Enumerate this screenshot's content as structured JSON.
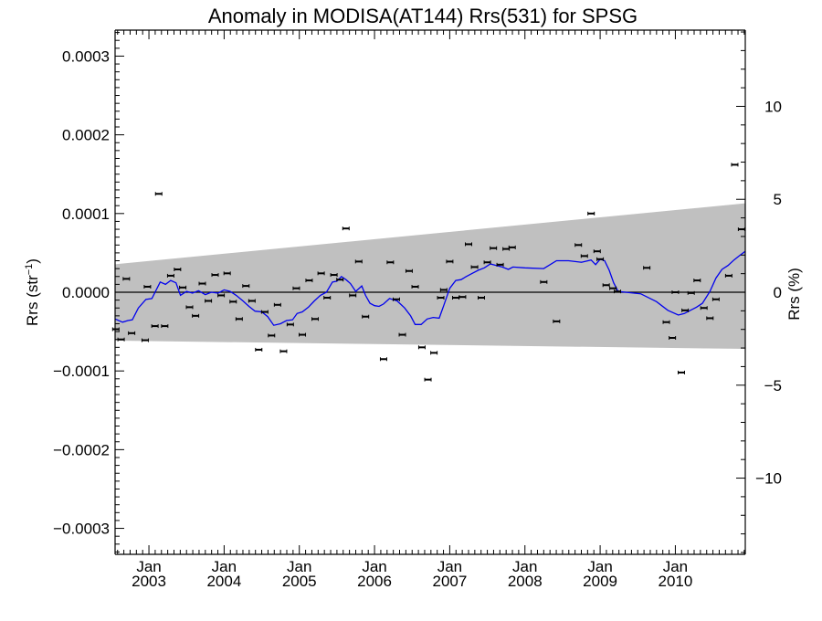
{
  "chart_data": {
    "type": "scatter",
    "title": "Anomaly in MODISA(AT144) Rrs(531) for SPSG",
    "ylabel": "Rrs (str",
    "ylabel_sup": "−1",
    "ylabel_close": ")",
    "y2label": "Rrs (%)",
    "xlim": [
      2002.55,
      2010.93
    ],
    "ylim": [
      -0.000333,
      0.000333
    ],
    "y2lim": [
      -14.1,
      14.1
    ],
    "grid": false,
    "x_ticks": [
      {
        "x": 2003.0,
        "month": "Jan",
        "year": "2003"
      },
      {
        "x": 2004.0,
        "month": "Jan",
        "year": "2004"
      },
      {
        "x": 2005.0,
        "month": "Jan",
        "year": "2005"
      },
      {
        "x": 2006.0,
        "month": "Jan",
        "year": "2006"
      },
      {
        "x": 2007.0,
        "month": "Jan",
        "year": "2007"
      },
      {
        "x": 2008.0,
        "month": "Jan",
        "year": "2008"
      },
      {
        "x": 2009.0,
        "month": "Jan",
        "year": "2009"
      },
      {
        "x": 2010.0,
        "month": "Jan",
        "year": "2010"
      }
    ],
    "y_ticks": [
      {
        "v": 0.0003,
        "label": "0.0003"
      },
      {
        "v": 0.0002,
        "label": "0.0002"
      },
      {
        "v": 0.0001,
        "label": "0.0001"
      },
      {
        "v": 0.0,
        "label": "0.0000"
      },
      {
        "v": -0.0001,
        "label": "−0.0001"
      },
      {
        "v": -0.0002,
        "label": "−0.0002"
      },
      {
        "v": -0.0003,
        "label": "−0.0003"
      }
    ],
    "y2_ticks": [
      {
        "v": 10,
        "label": "10"
      },
      {
        "v": 5,
        "label": "5"
      },
      {
        "v": 0,
        "label": "0"
      },
      {
        "v": -5,
        "label": "−5"
      },
      {
        "v": -10,
        "label": "−10"
      }
    ],
    "band": {
      "color": "#c0c0c0",
      "upper": [
        [
          2002.55,
          3.55e-05
        ],
        [
          2010.93,
          0.000113
        ]
      ],
      "lower": [
        [
          2002.55,
          -6.15e-05
        ],
        [
          2010.93,
          -7.2e-05
        ]
      ]
    },
    "zero_line": 0.0,
    "points": [
      {
        "x": 2002.56,
        "y": -4.7e-05
      },
      {
        "x": 2002.63,
        "y": -6e-05
      },
      {
        "x": 2002.7,
        "y": 1.7e-05
      },
      {
        "x": 2002.77,
        "y": -5.2e-05
      },
      {
        "x": 2002.95,
        "y": -6.1e-05
      },
      {
        "x": 2002.98,
        "y": 7e-06
      },
      {
        "x": 2003.08,
        "y": -4.3e-05
      },
      {
        "x": 2003.13,
        "y": 0.000125
      },
      {
        "x": 2003.21,
        "y": -4.3e-05
      },
      {
        "x": 2003.29,
        "y": 2.1e-05
      },
      {
        "x": 2003.38,
        "y": 2.9e-05
      },
      {
        "x": 2003.45,
        "y": 6e-06
      },
      {
        "x": 2003.54,
        "y": -1.9e-05
      },
      {
        "x": 2003.62,
        "y": -3e-05
      },
      {
        "x": 2003.71,
        "y": 1.1e-05
      },
      {
        "x": 2003.79,
        "y": -1.1e-05
      },
      {
        "x": 2003.88,
        "y": 2.2e-05
      },
      {
        "x": 2003.96,
        "y": -4e-06
      },
      {
        "x": 2004.04,
        "y": 2.4e-05
      },
      {
        "x": 2004.12,
        "y": -1.2e-05
      },
      {
        "x": 2004.2,
        "y": -3.4e-05
      },
      {
        "x": 2004.29,
        "y": 8e-06
      },
      {
        "x": 2004.37,
        "y": -1.1e-05
      },
      {
        "x": 2004.46,
        "y": -7.3e-05
      },
      {
        "x": 2004.54,
        "y": -2.5e-05
      },
      {
        "x": 2004.63,
        "y": -5.5e-05
      },
      {
        "x": 2004.71,
        "y": -1.6e-05
      },
      {
        "x": 2004.79,
        "y": -7.5e-05
      },
      {
        "x": 2004.88,
        "y": -4.1e-05
      },
      {
        "x": 2004.96,
        "y": 5e-06
      },
      {
        "x": 2005.04,
        "y": -5.4e-05
      },
      {
        "x": 2005.13,
        "y": 1.5e-05
      },
      {
        "x": 2005.21,
        "y": -3.4e-05
      },
      {
        "x": 2005.29,
        "y": 2.4e-05
      },
      {
        "x": 2005.37,
        "y": -7e-06
      },
      {
        "x": 2005.46,
        "y": 2.2e-05
      },
      {
        "x": 2005.54,
        "y": 1.6e-05
      },
      {
        "x": 2005.62,
        "y": 8.1e-05
      },
      {
        "x": 2005.71,
        "y": -4e-06
      },
      {
        "x": 2005.79,
        "y": 3.9e-05
      },
      {
        "x": 2005.88,
        "y": -3.1e-05
      },
      {
        "x": 2006.12,
        "y": -8.5e-05
      },
      {
        "x": 2006.21,
        "y": 3.8e-05
      },
      {
        "x": 2006.29,
        "y": -9e-06
      },
      {
        "x": 2006.37,
        "y": -5.4e-05
      },
      {
        "x": 2006.46,
        "y": 2.7e-05
      },
      {
        "x": 2006.54,
        "y": 7e-06
      },
      {
        "x": 2006.63,
        "y": -7e-05
      },
      {
        "x": 2006.71,
        "y": -0.000111
      },
      {
        "x": 2006.79,
        "y": -7.7e-05
      },
      {
        "x": 2006.88,
        "y": -7e-06
      },
      {
        "x": 2006.92,
        "y": 3e-06
      },
      {
        "x": 2007.0,
        "y": 3.9e-05
      },
      {
        "x": 2007.08,
        "y": -7e-06
      },
      {
        "x": 2007.17,
        "y": -6e-06
      },
      {
        "x": 2007.25,
        "y": 6.1e-05
      },
      {
        "x": 2007.33,
        "y": 3.2e-05
      },
      {
        "x": 2007.42,
        "y": -7e-06
      },
      {
        "x": 2007.5,
        "y": 3.8e-05
      },
      {
        "x": 2007.58,
        "y": 5.6e-05
      },
      {
        "x": 2007.67,
        "y": 3.5e-05
      },
      {
        "x": 2007.75,
        "y": 5.5e-05
      },
      {
        "x": 2007.83,
        "y": 5.7e-05
      },
      {
        "x": 2008.25,
        "y": 1.3e-05
      },
      {
        "x": 2008.42,
        "y": -3.7e-05
      },
      {
        "x": 2008.71,
        "y": 6e-05
      },
      {
        "x": 2008.79,
        "y": 4.6e-05
      },
      {
        "x": 2008.88,
        "y": 0.0001
      },
      {
        "x": 2008.96,
        "y": 5.2e-05
      },
      {
        "x": 2009.0,
        "y": 4.2e-05
      },
      {
        "x": 2009.08,
        "y": 9e-06
      },
      {
        "x": 2009.17,
        "y": 5e-06
      },
      {
        "x": 2009.23,
        "y": 1e-06
      },
      {
        "x": 2009.62,
        "y": 3.1e-05
      },
      {
        "x": 2009.88,
        "y": -3.8e-05
      },
      {
        "x": 2009.96,
        "y": -5.8e-05
      },
      {
        "x": 2010.0,
        "y": 0.0
      },
      {
        "x": 2010.08,
        "y": -0.000102
      },
      {
        "x": 2010.13,
        "y": -2.3e-05
      },
      {
        "x": 2010.21,
        "y": -1e-06
      },
      {
        "x": 2010.29,
        "y": 1.5e-05
      },
      {
        "x": 2010.38,
        "y": -2e-05
      },
      {
        "x": 2010.46,
        "y": -3.3e-05
      },
      {
        "x": 2010.54,
        "y": -9e-06
      },
      {
        "x": 2010.71,
        "y": 2.1e-05
      },
      {
        "x": 2010.79,
        "y": 0.000162
      },
      {
        "x": 2010.88,
        "y": 8e-05
      }
    ],
    "running_mean": {
      "color": "#0000ee",
      "points": [
        [
          2002.55,
          -3.4e-05
        ],
        [
          2002.65,
          -3.8e-05
        ],
        [
          2002.72,
          -3.6e-05
        ],
        [
          2002.78,
          -3.5e-05
        ],
        [
          2002.86,
          -2e-05
        ],
        [
          2002.96,
          -9e-06
        ],
        [
          2003.04,
          -8e-06
        ],
        [
          2003.15,
          1.3e-05
        ],
        [
          2003.22,
          1e-05
        ],
        [
          2003.29,
          1.5e-05
        ],
        [
          2003.36,
          1.2e-05
        ],
        [
          2003.42,
          -4e-06
        ],
        [
          2003.5,
          1e-06
        ],
        [
          2003.58,
          -1e-06
        ],
        [
          2003.66,
          2e-06
        ],
        [
          2003.75,
          -3e-06
        ],
        [
          2003.83,
          0.0
        ],
        [
          2003.92,
          -1e-06
        ],
        [
          2004.0,
          3e-06
        ],
        [
          2004.08,
          1e-06
        ],
        [
          2004.16,
          -4e-06
        ],
        [
          2004.25,
          -1.1e-05
        ],
        [
          2004.33,
          -1.8e-05
        ],
        [
          2004.41,
          -2.4e-05
        ],
        [
          2004.5,
          -2.5e-05
        ],
        [
          2004.58,
          -3.1e-05
        ],
        [
          2004.66,
          -4.2e-05
        ],
        [
          2004.75,
          -4e-05
        ],
        [
          2004.83,
          -3.6e-05
        ],
        [
          2004.91,
          -3.5e-05
        ],
        [
          2004.97,
          -2.7e-05
        ],
        [
          2005.04,
          -2.5e-05
        ],
        [
          2005.12,
          -1.9e-05
        ],
        [
          2005.2,
          -1.1e-05
        ],
        [
          2005.28,
          -4e-06
        ],
        [
          2005.36,
          0.0
        ],
        [
          2005.44,
          1.3e-05
        ],
        [
          2005.5,
          1.4e-05
        ],
        [
          2005.56,
          2e-05
        ],
        [
          2005.62,
          1.6e-05
        ],
        [
          2005.68,
          1.1e-05
        ],
        [
          2005.75,
          1e-06
        ],
        [
          2005.83,
          8e-06
        ],
        [
          2005.88,
          -4e-06
        ],
        [
          2005.94,
          -1.4e-05
        ],
        [
          2006.0,
          -1.7e-05
        ],
        [
          2006.06,
          -1.8e-05
        ],
        [
          2006.12,
          -1.5e-05
        ],
        [
          2006.2,
          -8e-06
        ],
        [
          2006.3,
          -1.1e-05
        ],
        [
          2006.4,
          -2e-05
        ],
        [
          2006.48,
          -3e-05
        ],
        [
          2006.54,
          -4.1e-05
        ],
        [
          2006.62,
          -4.1e-05
        ],
        [
          2006.7,
          -3.4e-05
        ],
        [
          2006.78,
          -3.2e-05
        ],
        [
          2006.86,
          -3.3e-05
        ],
        [
          2006.92,
          -1.7e-05
        ],
        [
          2007.0,
          5e-06
        ],
        [
          2007.08,
          1.5e-05
        ],
        [
          2007.15,
          1.6e-05
        ],
        [
          2007.22,
          2e-05
        ],
        [
          2007.3,
          2.4e-05
        ],
        [
          2007.38,
          2.8e-05
        ],
        [
          2007.46,
          3.1e-05
        ],
        [
          2007.54,
          3.6e-05
        ],
        [
          2007.62,
          3.4e-05
        ],
        [
          2007.7,
          3.2e-05
        ],
        [
          2007.78,
          2.9e-05
        ],
        [
          2007.84,
          3.2e-05
        ],
        [
          2008.0,
          3.1e-05
        ],
        [
          2008.25,
          3e-05
        ],
        [
          2008.42,
          4e-05
        ],
        [
          2008.58,
          4e-05
        ],
        [
          2008.75,
          3.8e-05
        ],
        [
          2008.88,
          4.1e-05
        ],
        [
          2008.94,
          3.5e-05
        ],
        [
          2009.0,
          4.2e-05
        ],
        [
          2009.06,
          4e-05
        ],
        [
          2009.12,
          2.8e-05
        ],
        [
          2009.18,
          1.2e-05
        ],
        [
          2009.24,
          1e-06
        ],
        [
          2009.54,
          -2e-06
        ],
        [
          2009.75,
          -1.2e-05
        ],
        [
          2009.9,
          -2.3e-05
        ],
        [
          2010.04,
          -2.9e-05
        ],
        [
          2010.12,
          -2.7e-05
        ],
        [
          2010.2,
          -2.3e-05
        ],
        [
          2010.28,
          -1.9e-05
        ],
        [
          2010.36,
          -1.4e-05
        ],
        [
          2010.46,
          1e-06
        ],
        [
          2010.54,
          1.8e-05
        ],
        [
          2010.62,
          2.9e-05
        ],
        [
          2010.7,
          3.4e-05
        ],
        [
          2010.78,
          4.1e-05
        ],
        [
          2010.86,
          4.7e-05
        ],
        [
          2010.93,
          5.2e-05
        ]
      ]
    }
  }
}
